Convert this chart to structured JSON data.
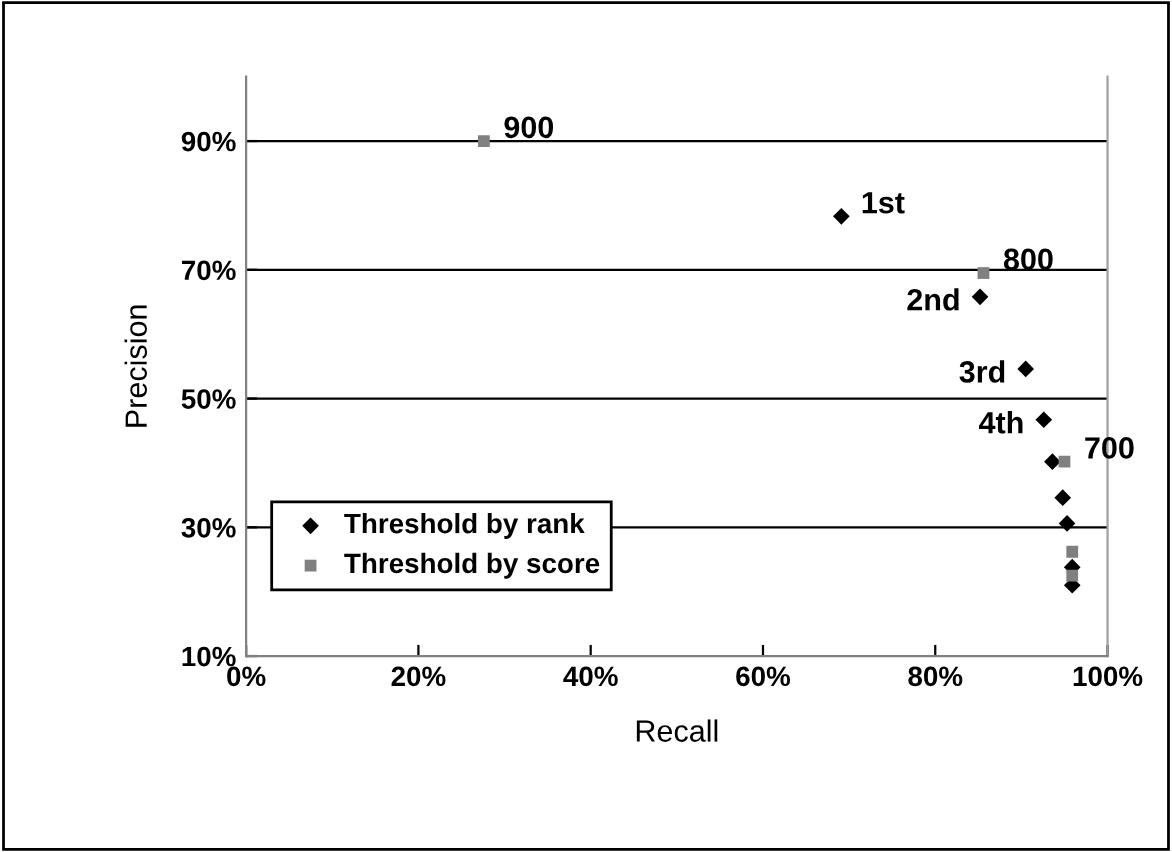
{
  "chart_data": {
    "type": "scatter",
    "xlabel": "Recall",
    "ylabel": "Precision",
    "xlim": [
      0,
      100
    ],
    "ylim": [
      10,
      100
    ],
    "xticks": [
      {
        "value": 0,
        "label": "0%"
      },
      {
        "value": 20,
        "label": "20%"
      },
      {
        "value": 40,
        "label": "40%"
      },
      {
        "value": 60,
        "label": "60%"
      },
      {
        "value": 80,
        "label": "80%"
      },
      {
        "value": 100,
        "label": "100%"
      }
    ],
    "yticks": [
      {
        "value": 10,
        "label": "10%"
      },
      {
        "value": 30,
        "label": "30%"
      },
      {
        "value": 50,
        "label": "50%"
      },
      {
        "value": 70,
        "label": "70%"
      },
      {
        "value": 90,
        "label": "90%"
      }
    ],
    "grid": "y",
    "legend": "bottom left",
    "series": [
      {
        "name": "Threshold by rank",
        "color": "#000000",
        "marker": "diamond",
        "x": [
          69.1,
          85.2,
          90.5,
          92.6,
          93.6,
          94.8,
          95.3,
          95.7,
          95.9,
          95.9
        ],
        "values": [
          78.3,
          65.8,
          54.6,
          46.7,
          40.2,
          34.6,
          30.6,
          null,
          23.8,
          21.0
        ]
      },
      {
        "name": "Threshold by score",
        "color": "#808080",
        "marker": "square",
        "x": [
          27.6,
          85.6,
          95.0,
          95.9,
          95.9
        ],
        "values": [
          90.0,
          69.5,
          40.2,
          26.2,
          22.5
        ]
      }
    ],
    "annotations": [
      {
        "text": "900",
        "x": 27.6,
        "y": 90.0
      },
      {
        "text": "800",
        "x": 85.6,
        "y": 69.5
      },
      {
        "text": "700",
        "x": 95.0,
        "y": 40.2
      },
      {
        "text": "1st",
        "x": 69.1,
        "y": 78.3
      },
      {
        "text": "2nd",
        "x": 85.2,
        "y": 65.8
      },
      {
        "text": "3rd",
        "x": 90.5,
        "y": 54.6
      },
      {
        "text": "4th",
        "x": 92.6,
        "y": 46.7
      }
    ]
  }
}
